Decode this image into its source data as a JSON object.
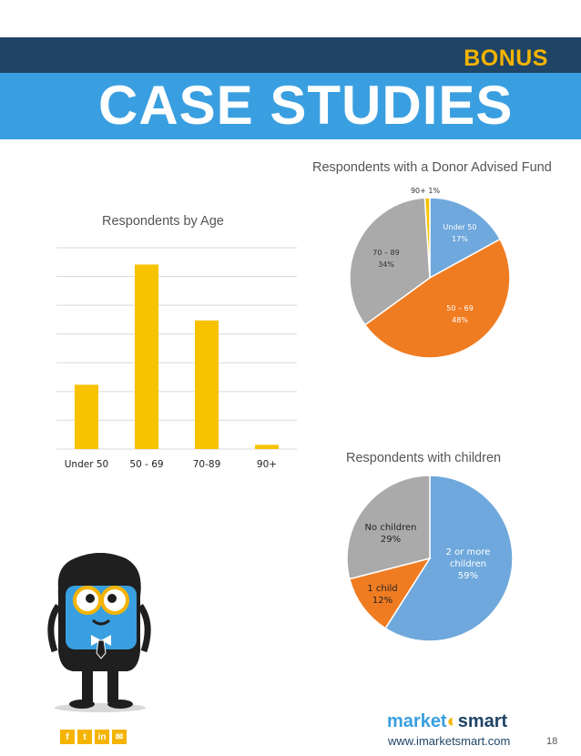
{
  "header": {
    "bonus": "BONUS",
    "title": "CASE STUDIES"
  },
  "colors": {
    "dark_band": "#1f4466",
    "blue_band": "#3a9fe0",
    "accent_yellow": "#f4b400",
    "bar": "#f7c200",
    "pie_blue": "#6fa8dc",
    "pie_orange": "#f07c22",
    "pie_gray": "#aaaaaa",
    "pie_yellow": "#f7c200"
  },
  "chart_data": [
    {
      "type": "bar",
      "title": "Respondents by Age",
      "categories": [
        "Under 50",
        "50 - 69",
        "70-89",
        "90+"
      ],
      "values": [
        23,
        66,
        46,
        1.5
      ],
      "ylim": [
        0,
        72
      ],
      "grid": true
    },
    {
      "type": "pie",
      "title": "Respondents with a Donor Advised Fund",
      "slices": [
        {
          "label": "Under 50",
          "pct": "17%",
          "value": 17,
          "color": "#6fa8dc"
        },
        {
          "label": "50 – 69",
          "pct": "48%",
          "value": 48,
          "color": "#f07c22"
        },
        {
          "label": "70 – 89",
          "pct": "34%",
          "value": 34,
          "color": "#aaaaaa"
        },
        {
          "label": "90+",
          "pct": "1%",
          "value": 1,
          "color": "#f7c200"
        }
      ]
    },
    {
      "type": "pie",
      "title": "Respondents with children",
      "slices": [
        {
          "label": "2 or more children",
          "pct": "59%",
          "value": 59,
          "color": "#6fa8dc"
        },
        {
          "label": "1 child",
          "pct": "12%",
          "value": 12,
          "color": "#f07c22"
        },
        {
          "label": "No children",
          "pct": "29%",
          "value": 29,
          "color": "#aaaaaa"
        }
      ]
    }
  ],
  "footer": {
    "logo_market": "market",
    "logo_smart": "smart",
    "url": "www.imarketsmart.com",
    "page": "18",
    "social_icons": [
      "facebook-icon",
      "twitter-icon",
      "linkedin-icon",
      "email-icon"
    ]
  }
}
